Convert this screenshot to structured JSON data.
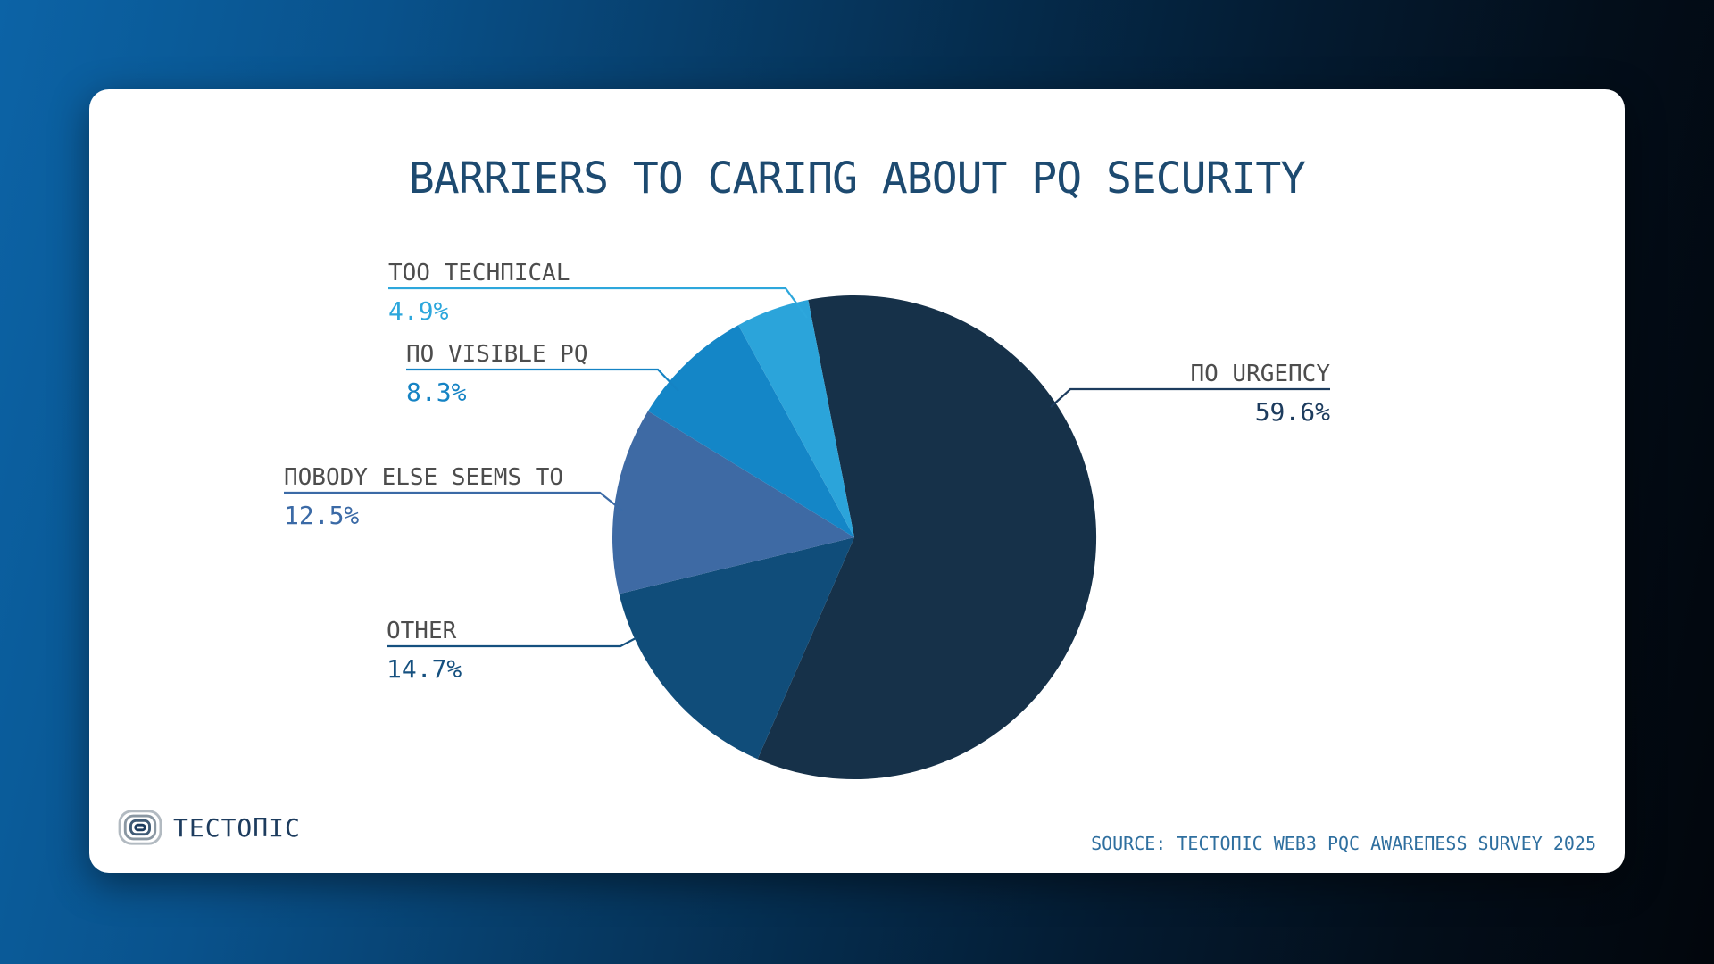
{
  "chart_data": {
    "type": "pie",
    "title": "BARRIERS TO CARING ABOUT PQ SECURITY",
    "legend_position": "none",
    "labels_style": "external callout lines",
    "start_angle_deg": -11,
    "direction": "clockwise",
    "slices": [
      {
        "label": "NO URGENCY",
        "value": 59.6,
        "pct": "59.6%",
        "color": "#163149",
        "text_color": "#1d3c5e"
      },
      {
        "label": "OTHER",
        "value": 14.7,
        "pct": "14.7%",
        "color": "#104d7a",
        "text_color": "#15507f"
      },
      {
        "label": "NOBODY ELSE SEEMS TO",
        "value": 12.5,
        "pct": "12.5%",
        "color": "#3e6aa4",
        "text_color": "#3b6aa6"
      },
      {
        "label": "NO VISIBLE PQ",
        "value": 8.3,
        "pct": "8.3%",
        "color": "#1486c7",
        "text_color": "#1583c4"
      },
      {
        "label": "TOO TECHNICAL",
        "value": 4.9,
        "pct": "4.9%",
        "color": "#2ba4da",
        "text_color": "#2da7dc"
      }
    ]
  },
  "branding": {
    "logo_text": "TECTONIC"
  },
  "footer": {
    "source": "SOURCE: TECTONIC WEB3 PQC AWARENESS SURVEY 2025"
  },
  "colors": {
    "card_background": "#ffffff",
    "title": "#1d4a70",
    "label_gray": "#4d4d4d",
    "source_text": "#2f6f9f",
    "background_left": "#0a5b99",
    "background_right": "#02060c"
  }
}
